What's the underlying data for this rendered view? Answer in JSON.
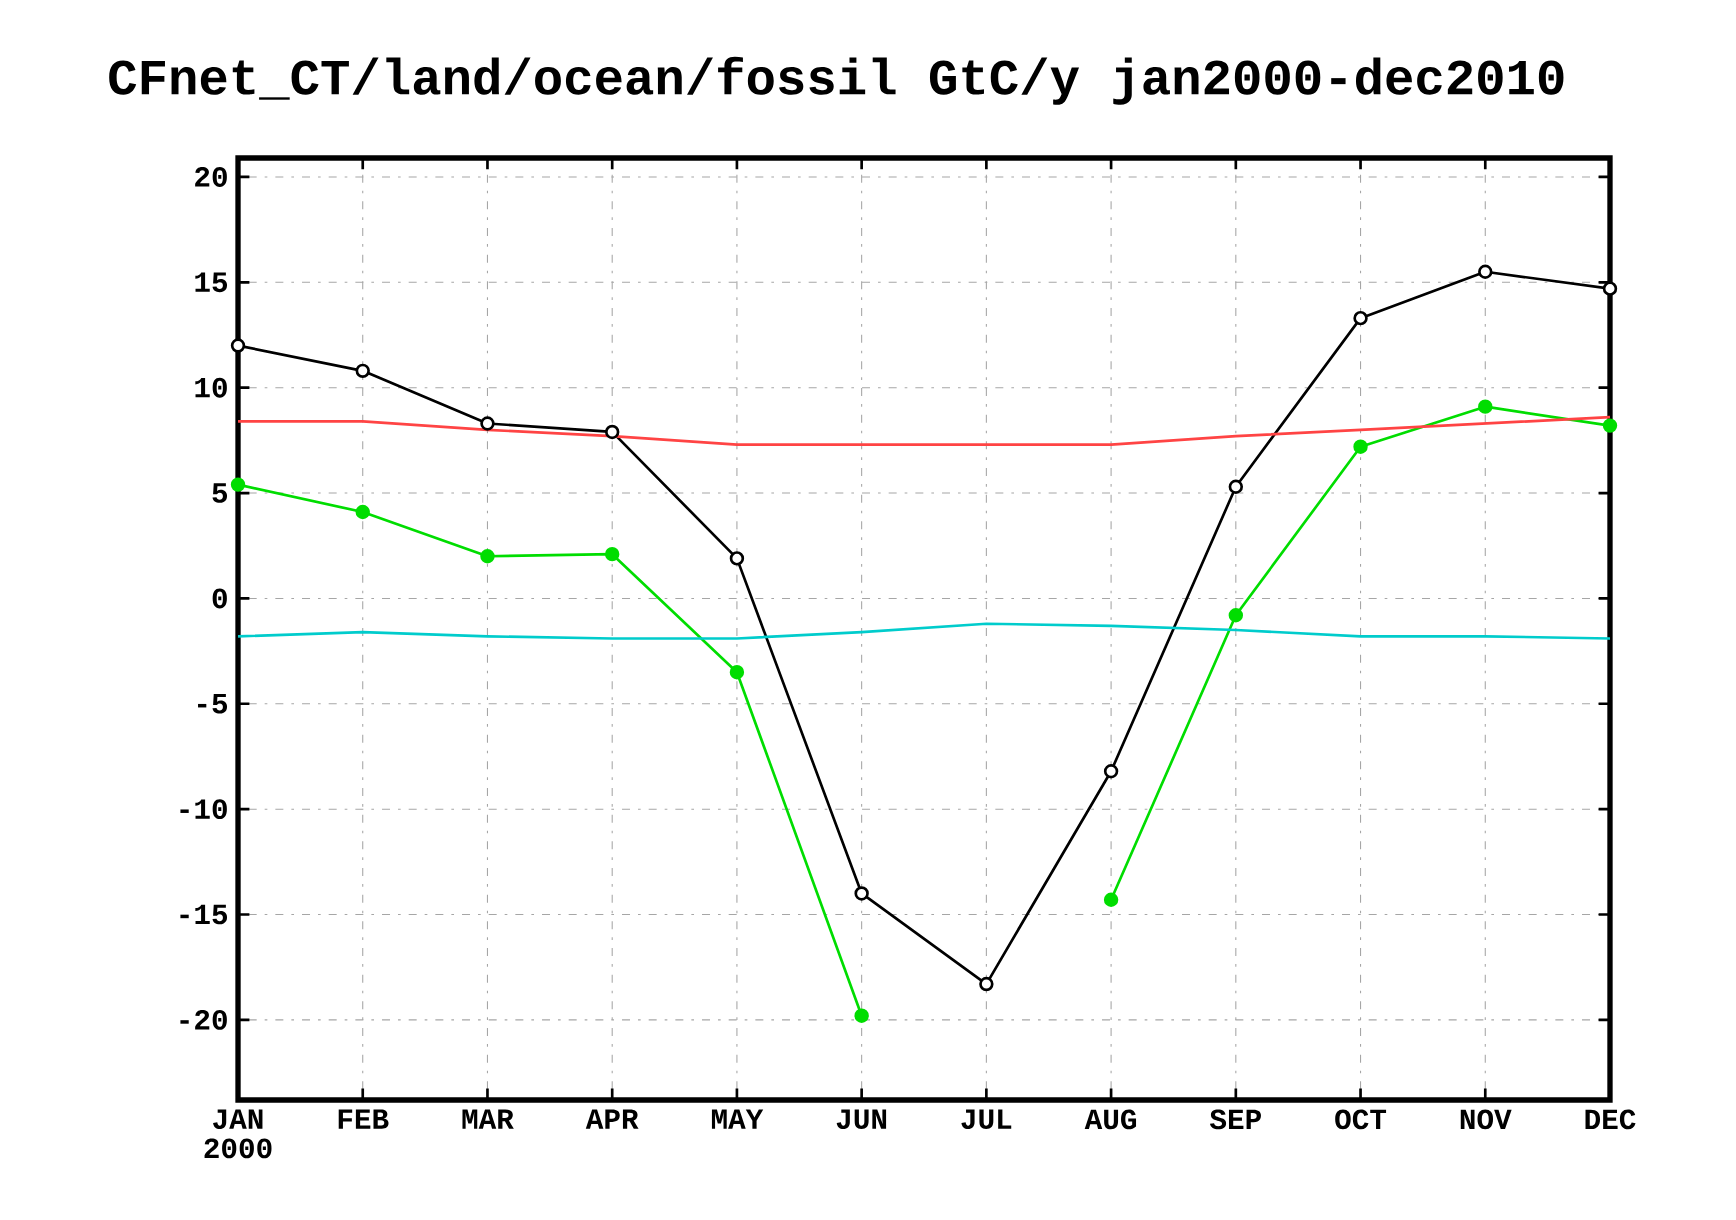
{
  "chart_data": {
    "type": "line",
    "title": "CFnet_CT/land/ocean/fossil  GtC/y jan2000-dec2010",
    "categories": [
      "JAN 2000",
      "FEB",
      "MAR",
      "APR",
      "MAY",
      "JUN",
      "JUL",
      "AUG",
      "SEP",
      "OCT",
      "NOV",
      "DEC"
    ],
    "series": [
      {
        "color": "#000000",
        "marker": "circle",
        "values": [
          12.0,
          10.8,
          8.3,
          7.9,
          1.9,
          -14.0,
          -18.3,
          -8.2,
          5.3,
          13.3,
          15.5,
          14.7
        ]
      },
      {
        "color": "#00dd00",
        "marker": "circle",
        "values": [
          5.4,
          4.1,
          2.0,
          2.1,
          -3.5,
          -19.8,
          null,
          -14.3,
          -0.8,
          7.2,
          9.1,
          8.2
        ]
      },
      {
        "color": "#ff4444",
        "marker": "none",
        "values": [
          8.4,
          8.4,
          8.0,
          7.7,
          7.3,
          7.3,
          7.3,
          7.3,
          7.7,
          8.0,
          8.3,
          8.6
        ]
      },
      {
        "color": "#00cccc",
        "marker": "none",
        "values": [
          -1.8,
          -1.6,
          -1.8,
          -1.9,
          -1.9,
          -1.6,
          -1.2,
          -1.3,
          -1.5,
          -1.8,
          -1.8,
          -1.9
        ]
      }
    ],
    "ylim": [
      -23.8,
      20.9
    ],
    "yticks": [
      -20,
      -15,
      -10,
      -5,
      0,
      5,
      10,
      15,
      20
    ],
    "grid": true
  }
}
